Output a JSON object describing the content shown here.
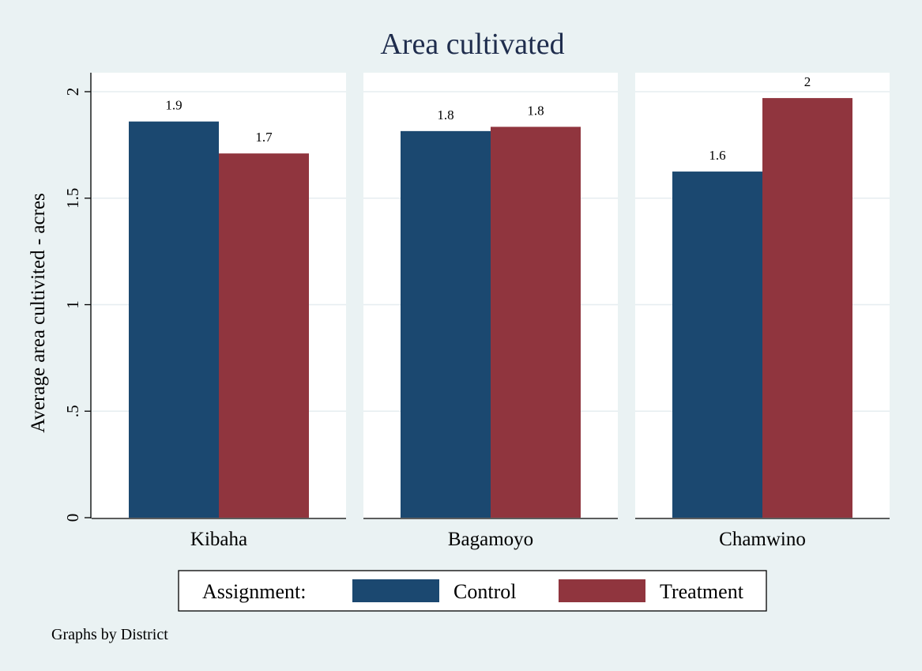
{
  "chart_data": {
    "type": "bar",
    "title": "Area cultivated",
    "ylabel": "Average area cultivited - acres",
    "ylim": [
      0,
      2
    ],
    "yticks": [
      {
        "value": 0,
        "label": "0"
      },
      {
        "value": 0.5,
        "label": ".5"
      },
      {
        "value": 1,
        "label": "1"
      },
      {
        "value": 1.5,
        "label": "1.5"
      },
      {
        "value": 2,
        "label": "2"
      }
    ],
    "grid": true,
    "panels": [
      {
        "name": "Kibaha",
        "values": [
          1.86,
          1.71
        ],
        "labels": [
          "1.9",
          "1.7"
        ]
      },
      {
        "name": "Bagamoyo",
        "values": [
          1.815,
          1.835
        ],
        "labels": [
          "1.8",
          "1.8"
        ]
      },
      {
        "name": "Chamwino",
        "values": [
          1.625,
          1.97
        ],
        "labels": [
          "1.6",
          "2"
        ]
      }
    ],
    "legend": {
      "title": "Assignment:",
      "placement": "bottom",
      "items": [
        {
          "name": "Control",
          "color": "#1b4870"
        },
        {
          "name": "Treatment",
          "color": "#90353e"
        }
      ]
    },
    "note": "Graphs by District"
  },
  "colors": {
    "background": "#eaf2f3",
    "plot_background": "#ffffff",
    "grid": "#e6edf0",
    "axis": "#000000",
    "title": "#1f2d4d"
  }
}
